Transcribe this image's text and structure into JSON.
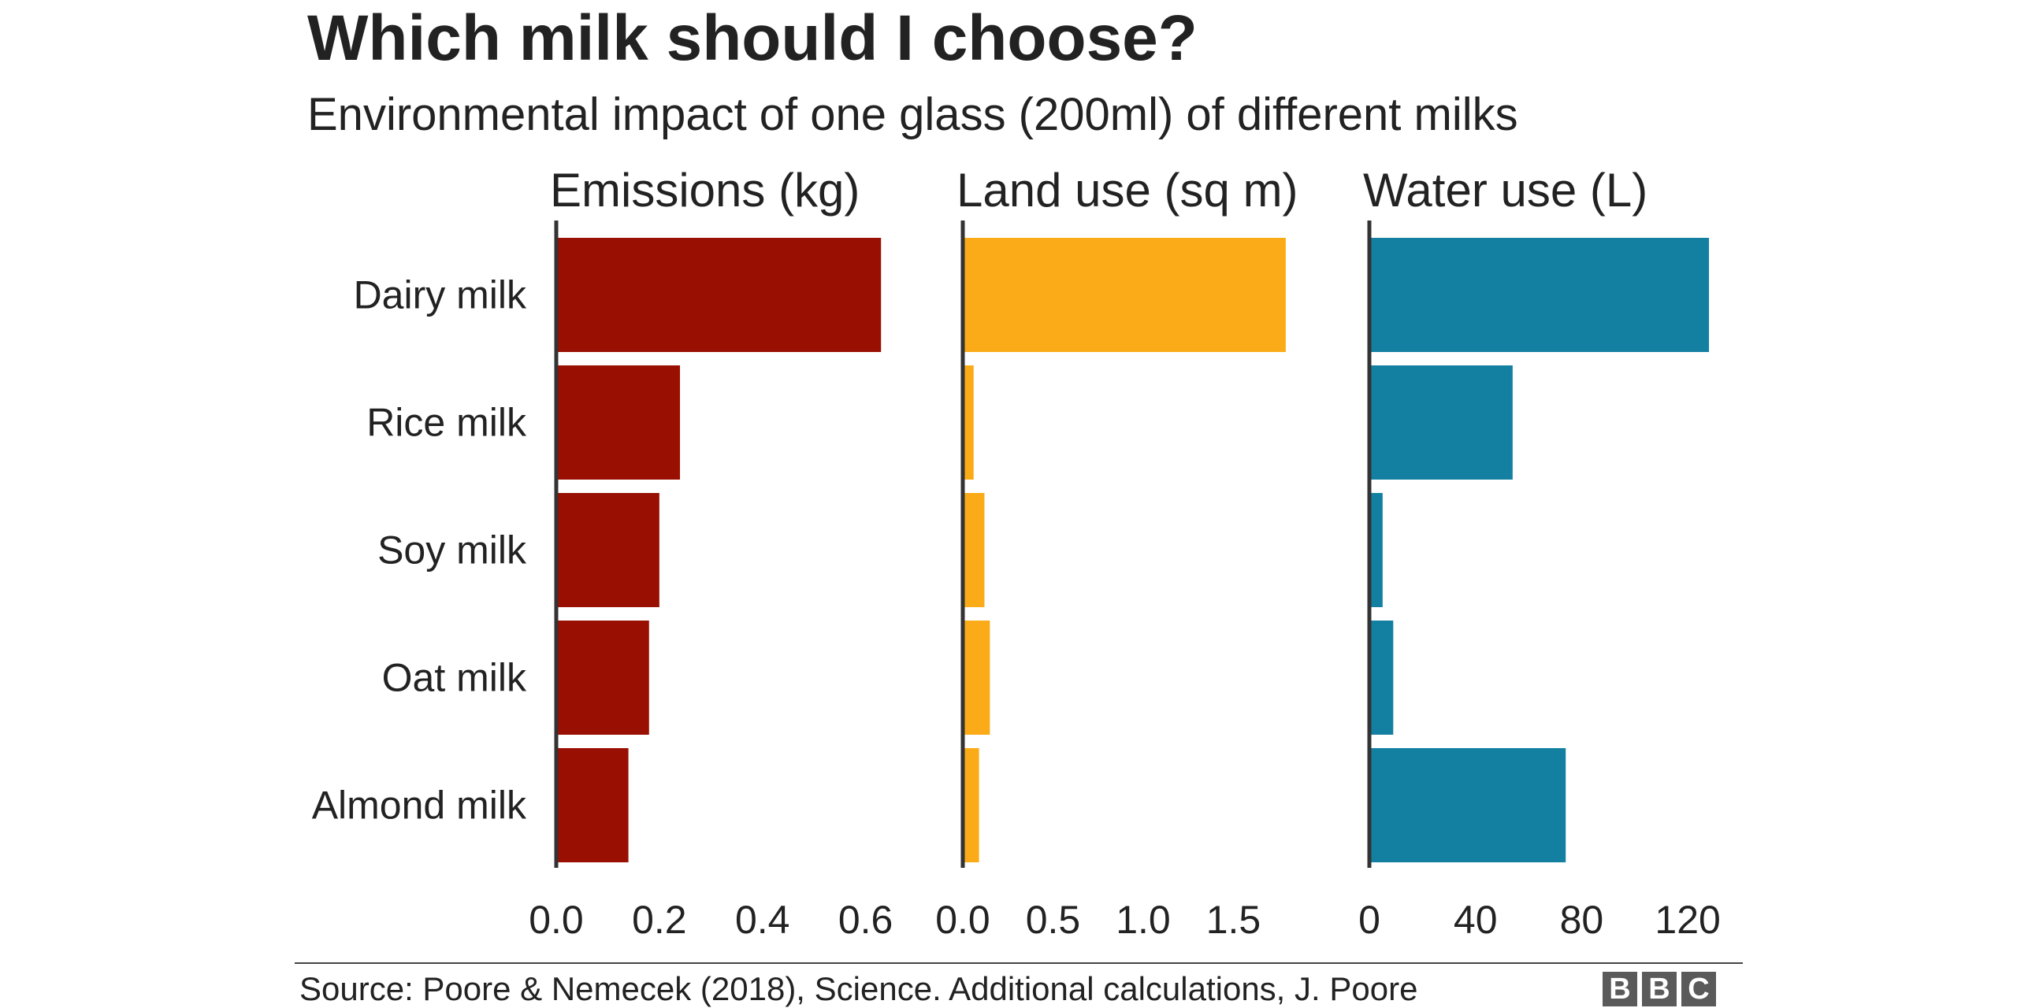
{
  "chart_data": {
    "type": "bar",
    "orientation": "horizontal",
    "title": "Which milk should I choose?",
    "subtitle": "Environmental impact of one glass (200ml) of different milks",
    "categories": [
      "Dairy milk",
      "Rice milk",
      "Soy milk",
      "Oat milk",
      "Almond milk"
    ],
    "panels": [
      {
        "title": "Emissions (kg)",
        "color": "#990f02",
        "values": [
          0.63,
          0.24,
          0.2,
          0.18,
          0.14
        ],
        "xlim": [
          0,
          0.7
        ],
        "ticks": [
          0,
          0.2,
          0.4,
          0.6
        ],
        "tick_labels": [
          "0.0",
          "0.2",
          "0.4",
          "0.6"
        ]
      },
      {
        "title": "Land use (sq m)",
        "color": "#fbab18",
        "values": [
          1.79,
          0.06,
          0.12,
          0.15,
          0.09
        ],
        "xlim": [
          0,
          2.0
        ],
        "ticks": [
          0,
          0.5,
          1.0,
          1.5
        ],
        "tick_labels": [
          "0.0",
          "0.5",
          "1.0",
          "1.5"
        ]
      },
      {
        "title": "Water use (L)",
        "color": "#1380a1",
        "values": [
          128,
          54,
          5,
          9,
          74
        ],
        "xlim": [
          0,
          136
        ],
        "ticks": [
          0,
          40,
          80,
          120
        ],
        "tick_labels": [
          "0",
          "40",
          "80",
          "120"
        ]
      }
    ]
  },
  "source": "Source: Poore & Nemecek (2018), Science. Additional calculations, J. Poore",
  "logo_letters": [
    "B",
    "B",
    "C"
  ]
}
